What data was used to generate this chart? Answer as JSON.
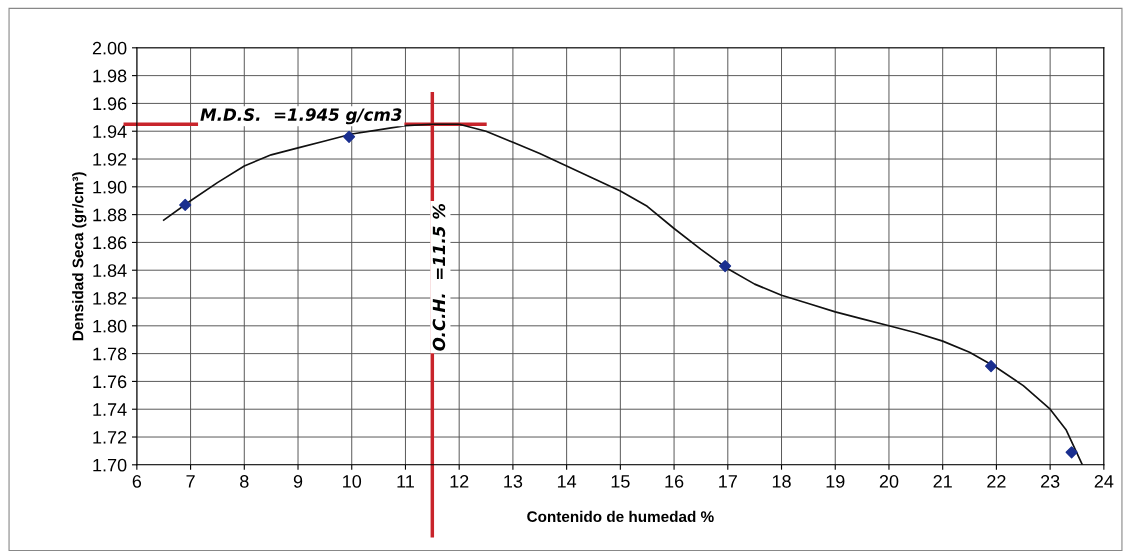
{
  "chart_data": {
    "type": "scatter",
    "xlabel": "Contenido de humedad %",
    "ylabel": "Densidad Seca (gr/cm³)",
    "series": [
      {
        "color": "#1a2f8f",
        "marker": "diamond",
        "x": [
          6.9,
          9.95,
          16.95,
          21.9,
          23.4
        ],
        "values": [
          1.887,
          1.936,
          1.843,
          1.771,
          1.709
        ]
      },
      {
        "type": "line",
        "color": "#111111",
        "marker": "none",
        "x": [
          6.5,
          7,
          7.5,
          8,
          8.5,
          9,
          9.5,
          10,
          10.5,
          11,
          11.5,
          12,
          12.5,
          13,
          13.5,
          14,
          14.5,
          15,
          15.5,
          16,
          16.5,
          17,
          17.5,
          18,
          18.5,
          19,
          19.5,
          20,
          20.5,
          21,
          21.5,
          22,
          22.5,
          23,
          23.3,
          23.6
        ],
        "values": [
          1.876,
          1.89,
          1.903,
          1.915,
          1.923,
          1.928,
          1.933,
          1.938,
          1.941,
          1.944,
          1.945,
          1.945,
          1.94,
          1.932,
          1.924,
          1.915,
          1.906,
          1.897,
          1.886,
          1.87,
          1.855,
          1.841,
          1.83,
          1.822,
          1.816,
          1.81,
          1.805,
          1.8,
          1.795,
          1.789,
          1.781,
          1.77,
          1.757,
          1.74,
          1.725,
          1.7
        ]
      }
    ],
    "ref_lines": [
      {
        "axis": "y",
        "value": 1.945,
        "label": "M.D.S.  =1.945 g/cm3",
        "color": "#c8242b"
      },
      {
        "axis": "x",
        "value": 11.5,
        "label": "O.C.H.  =11.5 %",
        "color": "#c8242b"
      }
    ],
    "xlim": [
      6,
      24
    ],
    "xticks": [
      6,
      7,
      8,
      9,
      10,
      11,
      12,
      13,
      14,
      15,
      16,
      17,
      18,
      19,
      20,
      21,
      22,
      23,
      24
    ],
    "ylim": [
      1.7,
      2.0
    ],
    "yticks": [
      {
        "value": 1.7,
        "label": "1.70"
      },
      {
        "value": 1.72,
        "label": "1.72"
      },
      {
        "value": 1.74,
        "label": "1.74"
      },
      {
        "value": 1.76,
        "label": "1.76"
      },
      {
        "value": 1.78,
        "label": "1.78"
      },
      {
        "value": 1.8,
        "label": "1.80"
      },
      {
        "value": 1.82,
        "label": "1.82"
      },
      {
        "value": 1.84,
        "label": "1.84"
      },
      {
        "value": 1.86,
        "label": "1.86"
      },
      {
        "value": 1.88,
        "label": "1.88"
      },
      {
        "value": 1.9,
        "label": "1.90"
      },
      {
        "value": 1.92,
        "label": "1.92"
      },
      {
        "value": 1.94,
        "label": "1.94"
      },
      {
        "value": 1.96,
        "label": "1.96"
      },
      {
        "value": 1.98,
        "label": "1.98"
      },
      {
        "value": 2.0,
        "label": "2.00"
      }
    ],
    "grid": true
  }
}
